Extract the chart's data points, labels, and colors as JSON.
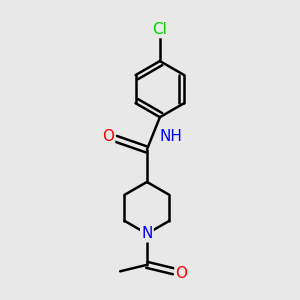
{
  "background_color": "#e8e8e8",
  "atom_colors": {
    "C": "#000000",
    "N": "#0000ff",
    "O": "#ff0000",
    "Cl": "#00cc00",
    "H": "#000000"
  },
  "bond_color": "#000000",
  "bond_width": 1.8,
  "font_size": 11,
  "background": "#e8e8e8",
  "hex_r": 0.65,
  "pip_r": 0.6
}
